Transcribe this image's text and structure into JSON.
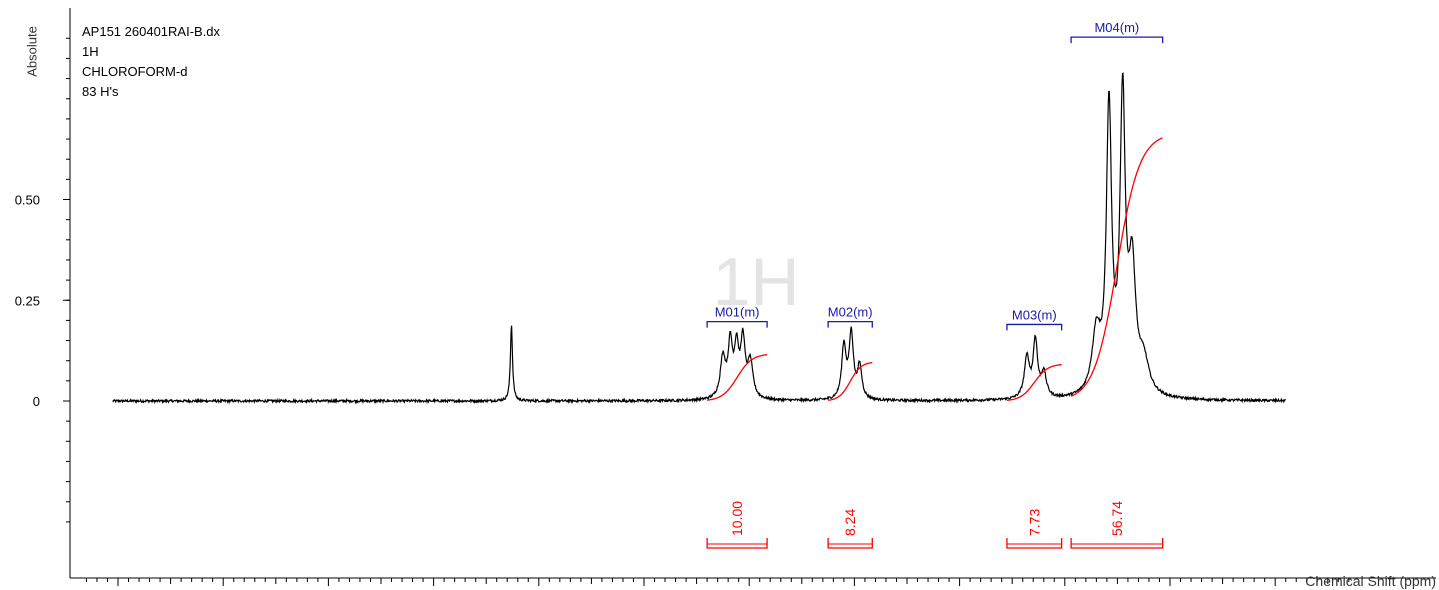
{
  "sample": {
    "filename": "AP151 260401RAI-B.dx",
    "nucleus": "1H",
    "solvent": "CHLOROFORM-d",
    "h_count": "83 H's"
  },
  "watermark": "1H",
  "colors": {
    "spectrum": "#000000",
    "integral": "#ff0000",
    "multiplet": "#1a1aaa"
  },
  "chart_data": {
    "type": "line",
    "xlabel": "Chemical Shift (ppm)",
    "ylabel": "Absolute",
    "x_reversed": true,
    "xlim": [
      11.4,
      -0.3
    ],
    "ylim": [
      -0.1625,
      0.875
    ],
    "x_ticks": [
      11,
      10,
      9,
      8,
      7,
      6,
      5,
      4,
      3,
      2,
      1
    ],
    "y_ticks": [
      {
        "value": 0,
        "label": "0"
      },
      {
        "value": 0.25,
        "label": "0.25"
      },
      {
        "value": 0.5,
        "label": "0.50"
      }
    ],
    "spectrum_range": [
      11.05,
      -0.1
    ],
    "noise_amplitude": 0.003,
    "peaks": [
      {
        "ppm": 7.26,
        "height": 0.19,
        "width": 0.012
      },
      {
        "ppm": 5.25,
        "height": 0.1,
        "width": 0.03
      },
      {
        "ppm": 5.18,
        "height": 0.13,
        "width": 0.025
      },
      {
        "ppm": 5.12,
        "height": 0.12,
        "width": 0.025
      },
      {
        "ppm": 5.06,
        "height": 0.14,
        "width": 0.025
      },
      {
        "ppm": 4.99,
        "height": 0.09,
        "width": 0.03
      },
      {
        "ppm": 4.1,
        "height": 0.13,
        "width": 0.025
      },
      {
        "ppm": 4.03,
        "height": 0.16,
        "width": 0.025
      },
      {
        "ppm": 3.95,
        "height": 0.08,
        "width": 0.025
      },
      {
        "ppm": 2.36,
        "height": 0.1,
        "width": 0.03
      },
      {
        "ppm": 2.28,
        "height": 0.14,
        "width": 0.025
      },
      {
        "ppm": 2.2,
        "height": 0.06,
        "width": 0.03
      },
      {
        "ppm": 1.7,
        "height": 0.15,
        "width": 0.05
      },
      {
        "ppm": 1.58,
        "height": 0.7,
        "width": 0.03
      },
      {
        "ppm": 1.45,
        "height": 0.72,
        "width": 0.03
      },
      {
        "ppm": 1.36,
        "height": 0.3,
        "width": 0.04
      },
      {
        "ppm": 1.25,
        "height": 0.08,
        "width": 0.06
      }
    ],
    "multiplets": [
      {
        "label": "M01(m)",
        "from": 5.4,
        "to": 4.83,
        "top_y": 0.197
      },
      {
        "label": "M02(m)",
        "from": 4.25,
        "to": 3.83,
        "top_y": 0.197
      },
      {
        "label": "M03(m)",
        "from": 2.55,
        "to": 2.03,
        "top_y": 0.19
      },
      {
        "label": "M04(m)",
        "from": 1.94,
        "to": 1.07,
        "top_y": 0.903
      }
    ],
    "integrals": [
      {
        "label": "10.00",
        "from": 5.4,
        "to": 4.83,
        "curve_height": 0.117
      },
      {
        "label": "8.24",
        "from": 4.25,
        "to": 3.83,
        "curve_height": 0.097
      },
      {
        "label": "7.73",
        "from": 2.55,
        "to": 2.03,
        "curve_height": 0.092
      },
      {
        "label": "56.74",
        "from": 1.94,
        "to": 1.07,
        "curve_height": 0.665
      }
    ]
  }
}
